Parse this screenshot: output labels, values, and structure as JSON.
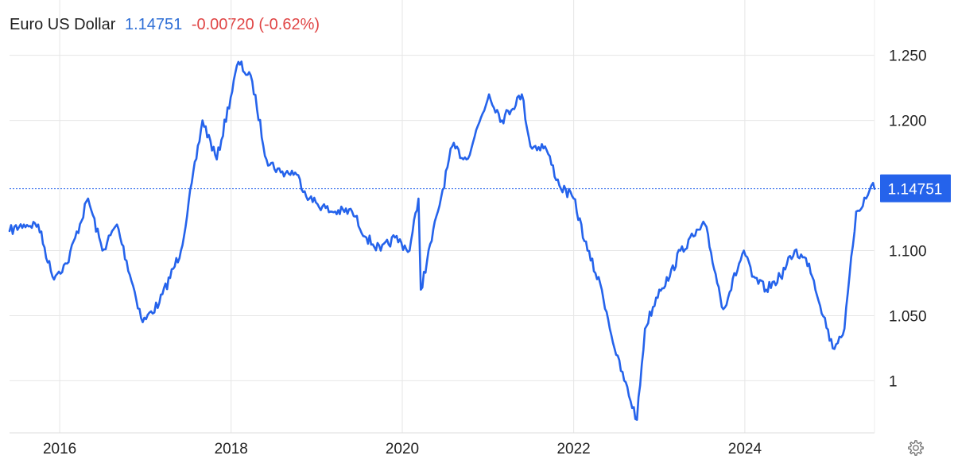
{
  "header": {
    "title": "Euro US Dollar",
    "price": "1.14751",
    "change": "-0.00720 (-0.62%)"
  },
  "colors": {
    "line": "#2563eb",
    "price_text": "#2f6fd6",
    "change_text": "#e04545",
    "grid": "#e6e6e6",
    "badge_bg": "#2563eb"
  },
  "icons": {
    "settings": "gear-icon"
  },
  "chart_data": {
    "type": "line",
    "title": "Euro US Dollar",
    "xlabel": "",
    "ylabel": "",
    "xlim": [
      "2015-06-01",
      "2025-07-07"
    ],
    "ylim": [
      0.96,
      1.262
    ],
    "x_ticks": [
      "2016",
      "2018",
      "2020",
      "2022",
      "2024"
    ],
    "y_ticks": [
      {
        "value": 1.25,
        "label": "1.250"
      },
      {
        "value": 1.2,
        "label": "1.200"
      },
      {
        "value": 1.1,
        "label": "1.100"
      },
      {
        "value": 1.05,
        "label": "1.050"
      },
      {
        "value": 1.0,
        "label": "1"
      }
    ],
    "last_value": 1.14751,
    "last_label": "1.14751",
    "grid": true,
    "series": [
      {
        "x": [
          "2015-06-01",
          "2015-08-01",
          "2015-10-01",
          "2015-12-01",
          "2016-02-01",
          "2016-05-01",
          "2016-07-01",
          "2016-09-01",
          "2016-12-20",
          "2017-03-01",
          "2017-06-01",
          "2017-09-01",
          "2017-11-01",
          "2018-02-01",
          "2018-04-01",
          "2018-06-01",
          "2018-08-01",
          "2018-10-01",
          "2018-12-01",
          "2019-03-01",
          "2019-06-01",
          "2019-08-01",
          "2019-10-01",
          "2019-12-01",
          "2020-02-01",
          "2020-03-10",
          "2020-03-20",
          "2020-06-01",
          "2020-08-01",
          "2020-10-01",
          "2021-01-05",
          "2021-03-01",
          "2021-05-25",
          "2021-07-01",
          "2021-09-01",
          "2021-11-01",
          "2022-01-01",
          "2022-03-01",
          "2022-05-01",
          "2022-07-01",
          "2022-09-28",
          "2022-11-01",
          "2023-01-01",
          "2023-02-15",
          "2023-04-01",
          "2023-07-15",
          "2023-10-01",
          "2023-12-28",
          "2024-02-01",
          "2024-04-01",
          "2024-06-01",
          "2024-08-01",
          "2024-10-01",
          "2025-01-10",
          "2025-03-01",
          "2025-04-20",
          "2025-06-01",
          "2025-07-01",
          "2025-07-07"
        ],
        "values": [
          1.115,
          1.12,
          1.12,
          1.08,
          1.09,
          1.14,
          1.1,
          1.12,
          1.045,
          1.06,
          1.1,
          1.2,
          1.17,
          1.245,
          1.23,
          1.17,
          1.16,
          1.16,
          1.14,
          1.13,
          1.13,
          1.11,
          1.1,
          1.11,
          1.1,
          1.14,
          1.07,
          1.13,
          1.18,
          1.17,
          1.22,
          1.2,
          1.22,
          1.18,
          1.18,
          1.15,
          1.14,
          1.1,
          1.07,
          1.02,
          0.97,
          1.04,
          1.07,
          1.08,
          1.1,
          1.12,
          1.055,
          1.1,
          1.08,
          1.07,
          1.08,
          1.1,
          1.09,
          1.025,
          1.04,
          1.13,
          1.14,
          1.152,
          1.14751
        ]
      }
    ]
  }
}
